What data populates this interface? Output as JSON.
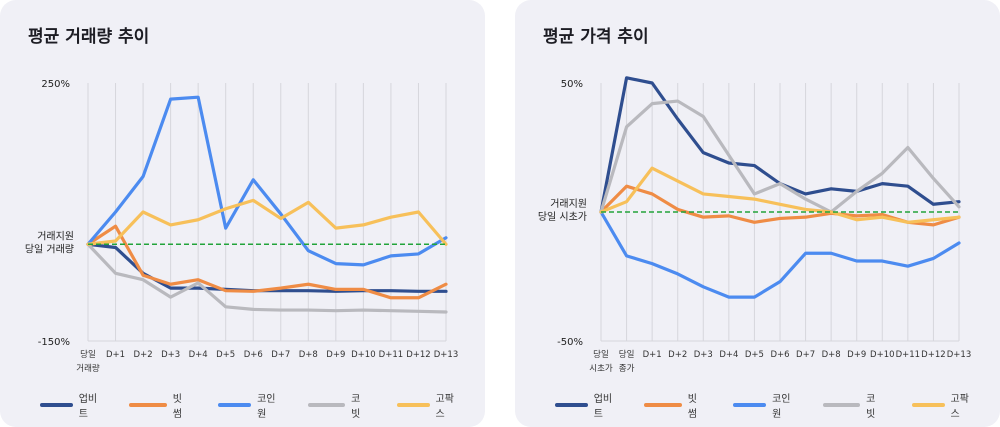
{
  "colors": {
    "upbit": "#2f4e8f",
    "bithumb": "#ef8c45",
    "coinone": "#4c8bf0",
    "korbit": "#b9b9be",
    "gopax": "#f7c05a",
    "baseline": "#22a33a",
    "grid": "#d6d6dc"
  },
  "chart_data": [
    {
      "type": "line",
      "title": "평균 거래량 추이",
      "ylim": [
        -150,
        250
      ],
      "yticks": [
        "250%",
        "-150%"
      ],
      "y_reference_label": [
        "거래지원",
        "당일 거래량"
      ],
      "categories": [
        [
          "당일",
          "거래량"
        ],
        [
          "D+1"
        ],
        [
          "D+2"
        ],
        [
          "D+3"
        ],
        [
          "D+4"
        ],
        [
          "D+5"
        ],
        [
          "D+6"
        ],
        [
          "D+7"
        ],
        [
          "D+8"
        ],
        [
          "D+9"
        ],
        [
          "D+10"
        ],
        [
          "D+11"
        ],
        [
          "D+12"
        ],
        [
          "D+13"
        ]
      ],
      "baseline": 0,
      "series": [
        {
          "name": "업비트",
          "color_key": "upbit",
          "values": [
            0,
            -5,
            -45,
            -68,
            -68,
            -70,
            -72,
            -72,
            -72,
            -73,
            -72,
            -72,
            -73,
            -73
          ]
        },
        {
          "name": "빗썸",
          "color_key": "bithumb",
          "values": [
            0,
            28,
            -48,
            -62,
            -55,
            -72,
            -73,
            -68,
            -62,
            -70,
            -70,
            -83,
            -83,
            -62
          ]
        },
        {
          "name": "코인원",
          "color_key": "coinone",
          "values": [
            0,
            50,
            105,
            225,
            228,
            25,
            100,
            47,
            -10,
            -30,
            -32,
            -18,
            -15,
            10
          ]
        },
        {
          "name": "코빗",
          "color_key": "korbit",
          "values": [
            0,
            -45,
            -55,
            -82,
            -60,
            -97,
            -101,
            -102,
            -102,
            -103,
            -102,
            -103,
            -104,
            -105
          ]
        },
        {
          "name": "고팍스",
          "color_key": "gopax",
          "values": [
            0,
            5,
            50,
            30,
            38,
            55,
            68,
            40,
            65,
            25,
            30,
            42,
            50,
            0
          ]
        }
      ],
      "legend": "bottom"
    },
    {
      "type": "line",
      "title": "평균 가격 추이",
      "ylim": [
        -50,
        50
      ],
      "yticks": [
        "50%",
        "-50%"
      ],
      "y_reference_label": [
        "거래지원",
        "당일 시초가"
      ],
      "categories": [
        [
          "당일",
          "시초가"
        ],
        [
          "당일",
          "종가"
        ],
        [
          "D+1"
        ],
        [
          "D+2"
        ],
        [
          "D+3"
        ],
        [
          "D+4"
        ],
        [
          "D+5"
        ],
        [
          "D+6"
        ],
        [
          "D+7"
        ],
        [
          "D+8"
        ],
        [
          "D+9"
        ],
        [
          "D+10"
        ],
        [
          "D+11"
        ],
        [
          "D+12"
        ],
        [
          "D+13"
        ]
      ],
      "baseline": 0,
      "series": [
        {
          "name": "업비트",
          "color_key": "upbit",
          "values": [
            0,
            52,
            50,
            36,
            23,
            19,
            18,
            11,
            7,
            9,
            8,
            11,
            10,
            3,
            4
          ]
        },
        {
          "name": "빗썸",
          "color_key": "bithumb",
          "values": [
            0,
            10,
            7,
            1,
            -2,
            -1.5,
            -4,
            -2.5,
            -2,
            -0.5,
            -1.5,
            -1,
            -4,
            -5,
            -2
          ]
        },
        {
          "name": "코인원",
          "color_key": "coinone",
          "values": [
            0,
            -17,
            -20,
            -24,
            -29,
            -33,
            -33,
            -27,
            -16,
            -16,
            -19,
            -19,
            -21,
            -18,
            -12
          ]
        },
        {
          "name": "코빗",
          "color_key": "korbit",
          "values": [
            0,
            33,
            42,
            43,
            37,
            22,
            7,
            11,
            5,
            0,
            8,
            15,
            25,
            13,
            2
          ]
        },
        {
          "name": "고팍스",
          "color_key": "gopax",
          "values": [
            0,
            4,
            17,
            12,
            7,
            6,
            5,
            3,
            1,
            0,
            -3,
            -2,
            -4,
            -3,
            -2
          ]
        }
      ],
      "legend": "bottom"
    }
  ]
}
